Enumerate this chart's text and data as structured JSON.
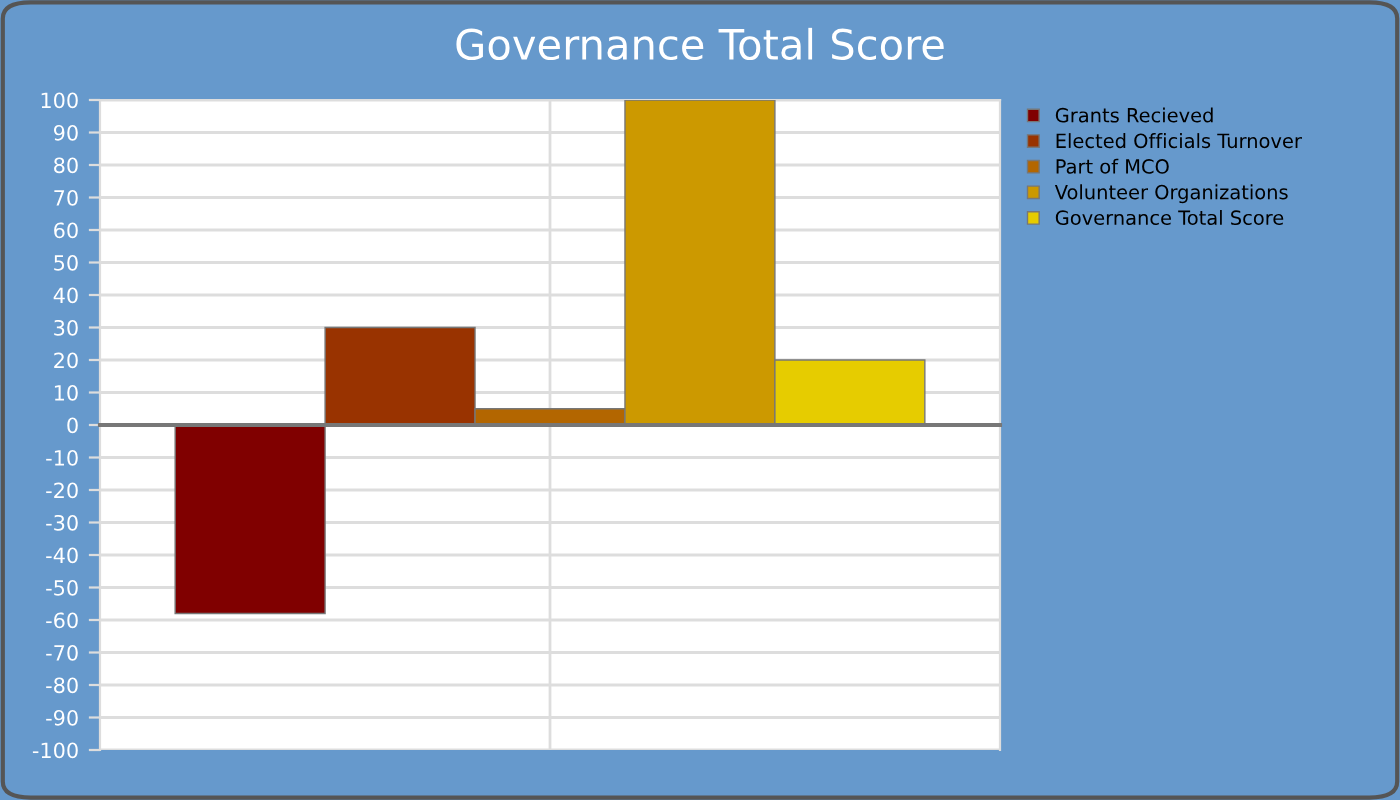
{
  "chart_data": {
    "type": "bar",
    "title": "Governance Total Score",
    "categories": [
      null
    ],
    "series": [
      {
        "name": "Grants Recieved",
        "color": "#800000",
        "values": [
          -58
        ]
      },
      {
        "name": "Elected Officials Turnover",
        "color": "#993300",
        "values": [
          30
        ]
      },
      {
        "name": "Part of MCO",
        "color": "#b36600",
        "values": [
          5
        ]
      },
      {
        "name": "Volunteer Organizations",
        "color": "#cc9900",
        "values": [
          100
        ]
      },
      {
        "name": "Governance Total Score",
        "color": "#e6cc00",
        "values": [
          20
        ]
      }
    ],
    "ylim": [
      -100,
      100
    ],
    "yticks": [
      -100,
      -90,
      -80,
      -70,
      -60,
      -50,
      -40,
      -30,
      -20,
      -10,
      0,
      10,
      20,
      30,
      40,
      50,
      60,
      70,
      80,
      90,
      100
    ],
    "grid": true,
    "legend": "top right"
  }
}
